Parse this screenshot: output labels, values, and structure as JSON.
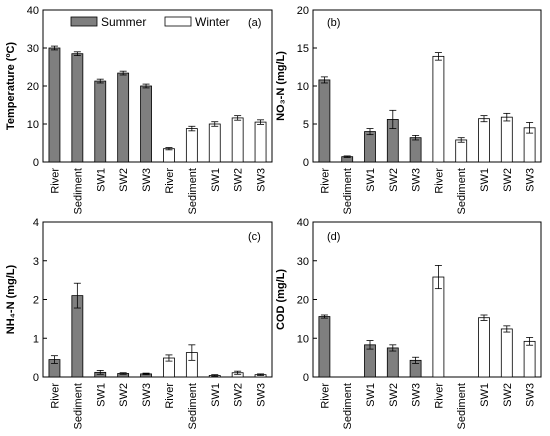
{
  "legend": {
    "summer_label": "Summer",
    "winter_label": "Winter",
    "summer_color": "#7f7f7f",
    "winter_color": "#ffffff"
  },
  "chart_data": [
    {
      "type": "bar",
      "panel_label": "(a)",
      "ylabel": "Temperature (ºC)",
      "ylim": [
        0,
        40
      ],
      "yticks": [
        0,
        10,
        20,
        30,
        40
      ],
      "categories": [
        "River",
        "Sediment",
        "SW1",
        "SW2",
        "SW3",
        "River",
        "Sediment",
        "SW1",
        "SW2",
        "SW3"
      ],
      "series": [
        {
          "name": "Summer",
          "values": [
            30.0,
            28.5,
            21.3,
            23.4,
            20.0,
            null,
            null,
            null,
            null,
            null
          ],
          "errors": [
            0.5,
            0.5,
            0.5,
            0.5,
            0.5,
            null,
            null,
            null,
            null,
            null
          ]
        },
        {
          "name": "Winter",
          "values": [
            null,
            null,
            null,
            null,
            null,
            3.5,
            8.8,
            10.0,
            11.6,
            10.5
          ],
          "errors": [
            null,
            null,
            null,
            null,
            null,
            0.3,
            0.6,
            0.6,
            0.6,
            0.6
          ]
        }
      ]
    },
    {
      "type": "bar",
      "panel_label": "(b)",
      "ylabel": "NO₃-N (mg/L)",
      "ylim": [
        0,
        20
      ],
      "yticks": [
        0,
        5,
        10,
        15,
        20
      ],
      "categories": [
        "River",
        "Sediment",
        "SW1",
        "SW2",
        "SW3",
        "River",
        "Sediment",
        "SW1",
        "SW2",
        "SW3"
      ],
      "series": [
        {
          "name": "Summer",
          "values": [
            10.8,
            0.7,
            4.0,
            5.6,
            3.2,
            null,
            null,
            null,
            null,
            null
          ],
          "errors": [
            0.4,
            0.1,
            0.4,
            1.2,
            0.3,
            null,
            null,
            null,
            null,
            null
          ]
        },
        {
          "name": "Winter",
          "values": [
            null,
            null,
            null,
            null,
            null,
            13.9,
            2.9,
            5.7,
            5.9,
            4.5
          ],
          "errors": [
            null,
            null,
            null,
            null,
            null,
            0.5,
            0.3,
            0.4,
            0.5,
            0.7
          ]
        }
      ]
    },
    {
      "type": "bar",
      "panel_label": "(c)",
      "ylabel": "NH₄-N (mg/L)",
      "ylim": [
        0,
        4
      ],
      "yticks": [
        0,
        1,
        2,
        3,
        4
      ],
      "categories": [
        "River",
        "Sediment",
        "SW1",
        "SW2",
        "SW3",
        "River",
        "Sediment",
        "SW1",
        "SW2",
        "SW3"
      ],
      "series": [
        {
          "name": "Summer",
          "values": [
            0.45,
            2.1,
            0.12,
            0.09,
            0.08,
            null,
            null,
            null,
            null,
            null
          ],
          "errors": [
            0.1,
            0.32,
            0.05,
            0.02,
            0.02,
            null,
            null,
            null,
            null,
            null
          ]
        },
        {
          "name": "Winter",
          "values": [
            null,
            null,
            null,
            null,
            null,
            0.49,
            0.63,
            0.04,
            0.11,
            0.06
          ],
          "errors": [
            null,
            null,
            null,
            null,
            null,
            0.08,
            0.2,
            0.02,
            0.04,
            0.02
          ]
        }
      ]
    },
    {
      "type": "bar",
      "panel_label": "(d)",
      "ylabel": "COD (mg/L)",
      "ylim": [
        0,
        40
      ],
      "yticks": [
        0,
        10,
        20,
        30,
        40
      ],
      "categories": [
        "River",
        "Sediment",
        "SW1",
        "SW2",
        "SW3",
        "River",
        "Sediment",
        "SW1",
        "SW2",
        "SW3"
      ],
      "series": [
        {
          "name": "Summer",
          "values": [
            15.6,
            null,
            8.3,
            7.5,
            4.3,
            null,
            null,
            null,
            null,
            null
          ],
          "errors": [
            0.4,
            null,
            1.1,
            0.8,
            0.8,
            null,
            null,
            null,
            null,
            null
          ]
        },
        {
          "name": "Winter",
          "values": [
            null,
            null,
            null,
            null,
            null,
            25.8,
            null,
            15.3,
            12.4,
            9.2
          ],
          "errors": [
            null,
            null,
            null,
            null,
            null,
            3.0,
            null,
            0.7,
            0.8,
            1.0
          ]
        }
      ]
    }
  ]
}
